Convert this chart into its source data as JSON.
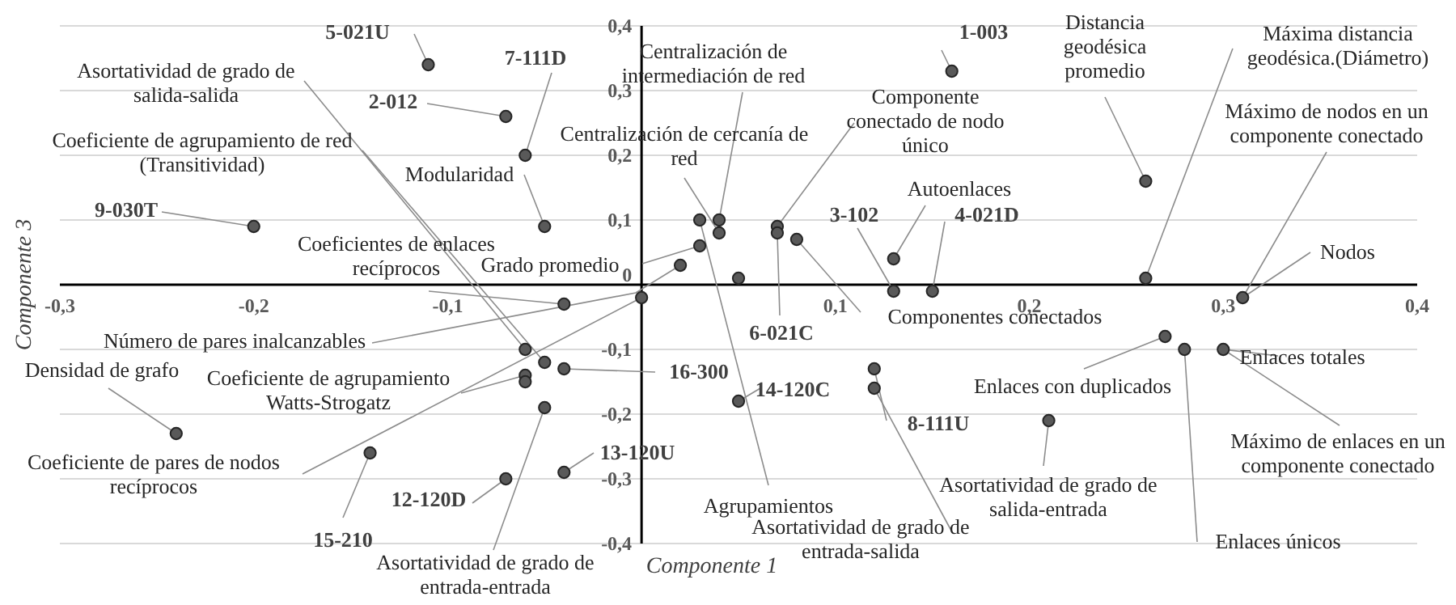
{
  "chart_data": {
    "type": "scatter",
    "xlabel": "Componente 1",
    "ylabel": "Componente 3",
    "x": [
      -0.11,
      -0.07,
      -0.06,
      -0.05,
      -0.2,
      0.16,
      0.26,
      0.26,
      0.31,
      0.03,
      0.04,
      0.04,
      0.03,
      0.02,
      0.05,
      0.07,
      0.07,
      0.08,
      0.13,
      0.13,
      0.15,
      0,
      -0.04,
      -0.06,
      -0.05,
      -0.04,
      -0.06,
      -0.06,
      -0.05,
      -0.07,
      -0.04,
      0.05,
      0.12,
      0.12,
      -0.24,
      -0.14,
      0.27,
      0.28,
      0.3,
      0.21
    ],
    "values": [
      0.34,
      0.26,
      0.2,
      0.09,
      0.09,
      0.33,
      0.16,
      0.01,
      -0.02,
      0.1,
      0.1,
      0.08,
      0.06,
      0.03,
      0.01,
      0.09,
      0.08,
      0.07,
      0.04,
      -0.01,
      -0.01,
      -0.02,
      -0.03,
      -0.1,
      -0.12,
      -0.13,
      -0.14,
      -0.15,
      -0.19,
      -0.3,
      -0.29,
      -0.18,
      -0.13,
      -0.16,
      -0.23,
      -0.26,
      -0.08,
      -0.1,
      -0.1,
      -0.21
    ],
    "color": "#595959",
    "marker": "circle",
    "grid": "y",
    "xlim": [
      -0.3,
      0.4
    ],
    "xticks": [
      {
        "value": -0.3,
        "label": "-0,3"
      },
      {
        "value": -0.2,
        "label": "-0,2"
      },
      {
        "value": -0.1,
        "label": "-0,1"
      },
      {
        "value": 0.1,
        "label": "0,1"
      },
      {
        "value": 0.2,
        "label": "0,2"
      },
      {
        "value": 0.3,
        "label": "0,3"
      },
      {
        "value": 0.4,
        "label": "0,4"
      }
    ],
    "ylim": [
      -0.4,
      0.4
    ],
    "yticks": [
      {
        "value": -0.4,
        "label": "-0,4"
      },
      {
        "value": -0.3,
        "label": "-0,3"
      },
      {
        "value": -0.2,
        "label": "-0,2"
      },
      {
        "value": -0.1,
        "label": "-0,1"
      },
      0,
      {
        "value": 0.1,
        "label": "0,1"
      },
      {
        "value": 0.2,
        "label": "0,2"
      },
      {
        "value": 0.3,
        "label": "0,3"
      },
      {
        "value": 0.4,
        "label": "0,4"
      }
    ],
    "annotations": [
      {
        "text": "5-021U",
        "x": -0.11,
        "y": 0.34
      },
      {
        "text": "2-012",
        "x": -0.07,
        "y": 0.26
      },
      {
        "text": "7-111D",
        "x": -0.06,
        "y": 0.2
      },
      {
        "text": "Modularidad",
        "x": -0.05,
        "y": 0.09
      },
      {
        "text": "9-030T",
        "x": -0.2,
        "y": 0.09
      },
      {
        "text": "1-003",
        "x": 0.16,
        "y": 0.33
      },
      {
        "text": "Distancia geodésica promedio",
        "x": 0.26,
        "y": 0.16
      },
      {
        "text": "Máxima distancia geodésica.(Diámetro)",
        "x": 0.26,
        "y": 0.01
      },
      {
        "text": "Máximo de nodos en un componente conectado",
        "x": 0.31,
        "y": -0.02
      },
      {
        "text": "Nodos",
        "x": 0.31,
        "y": -0.02
      },
      {
        "text": "Centralización de intermediación de red",
        "x": 0.04,
        "y": 0.1
      },
      {
        "text": "Centralización de cercanía de red",
        "x": 0.04,
        "y": 0.08
      },
      {
        "text": "Componente conectado de nodo único",
        "x": 0.07,
        "y": 0.09
      },
      {
        "text": "Autoenlaces",
        "x": 0.13,
        "y": 0.04
      },
      {
        "text": "3-102",
        "x": 0.13,
        "y": -0.01
      },
      {
        "text": "4-021D",
        "x": 0.15,
        "y": -0.01
      },
      {
        "text": "Grado promedio",
        "x": 0.03,
        "y": 0.06
      },
      {
        "text": "Número de pares inalcanzables",
        "x": 0.02,
        "y": 0.03
      },
      {
        "text": "Coeficientes de enlaces recíprocos",
        "x": -0.04,
        "y": -0.03
      },
      {
        "text": "Asortatividad de grado de salida-salida",
        "x": -0.06,
        "y": -0.1
      },
      {
        "text": "Coeficiente de agrupamiento de red (Transitividad)",
        "x": -0.05,
        "y": -0.12
      },
      {
        "text": "Coeficiente de agrupamiento Watts-Strogatz",
        "x": -0.06,
        "y": -0.14
      },
      {
        "text": "Densidad de grafo",
        "x": -0.24,
        "y": -0.23
      },
      {
        "text": "Coeficiente de pares de nodos recíprocos",
        "x": 0,
        "y": -0.02
      },
      {
        "text": "15-210",
        "x": -0.14,
        "y": -0.26
      },
      {
        "text": "12-120D",
        "x": -0.07,
        "y": -0.3
      },
      {
        "text": "Asortatividad de grado de entrada-entrada",
        "x": -0.05,
        "y": -0.19
      },
      {
        "text": "13-120U",
        "x": -0.04,
        "y": -0.29
      },
      {
        "text": "16-300",
        "x": -0.04,
        "y": -0.13
      },
      {
        "text": "14-120C",
        "x": 0.05,
        "y": -0.18
      },
      {
        "text": "Agrupamientos",
        "x": 0.03,
        "y": 0.1
      },
      {
        "text": "6-021C",
        "x": 0.07,
        "y": 0.08
      },
      {
        "text": "Componentes conectados",
        "x": 0.08,
        "y": 0.07
      },
      {
        "text": "8-111U",
        "x": 0.12,
        "y": -0.13
      },
      {
        "text": "Asortatividad de grado de entrada-salida",
        "x": 0.12,
        "y": -0.16
      },
      {
        "text": "Asortatividad de grado de salida-entrada",
        "x": 0.21,
        "y": -0.21
      },
      {
        "text": "Enlaces con duplicados",
        "x": 0.27,
        "y": -0.08
      },
      {
        "text": "Enlaces únicos",
        "x": 0.28,
        "y": -0.1
      },
      {
        "text": "Enlaces totales",
        "x": 0.3,
        "y": -0.1
      },
      {
        "text": "Máximo de enlaces en un componente conectado",
        "x": 0.3,
        "y": -0.1
      }
    ]
  }
}
